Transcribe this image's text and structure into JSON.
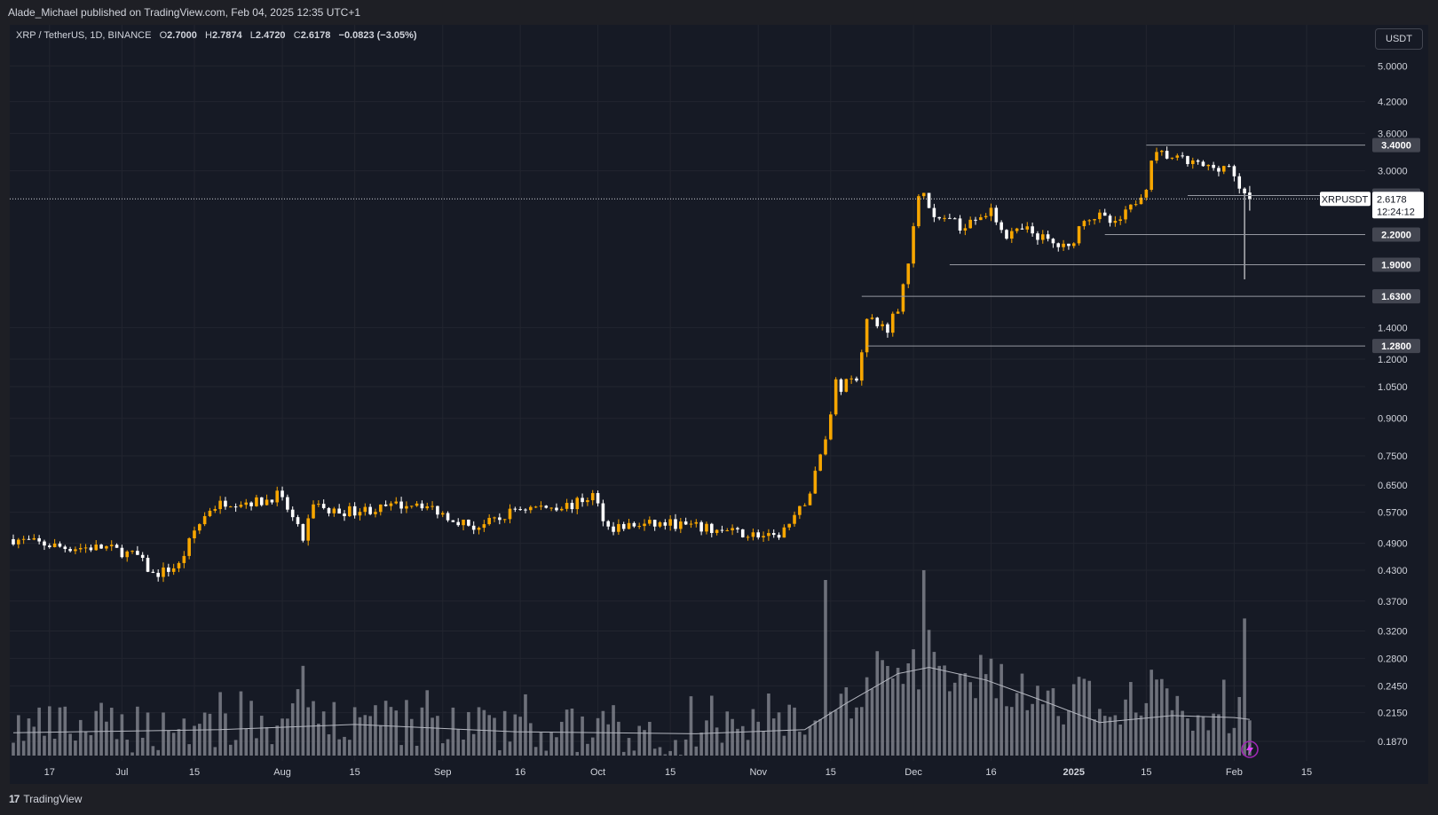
{
  "header": {
    "published_by": "Alade_Michael published on TradingView.com, Feb 04, 2025 12:35 UTC+1"
  },
  "legend": {
    "symbol": "XRP / TetherUS, 1D, BINANCE",
    "o_label": "O",
    "o": "2.7000",
    "h_label": "H",
    "h": "2.7874",
    "l_label": "L",
    "l": "2.4720",
    "c_label": "C",
    "c": "2.6178",
    "change": "−0.0823 (−3.05%)"
  },
  "toolbar": {
    "currency_button": "USDT"
  },
  "footer": {
    "brand": "TradingView",
    "brand_icon": "tradingview-logo-icon"
  },
  "colors": {
    "background": "#161a25",
    "up": "#f7a600",
    "down": "#ffffff",
    "volume": "#8c8f98",
    "grid": "#22252f"
  },
  "chart_data": {
    "type": "candlestick",
    "symbol": "XRPUSDT",
    "y_scale": "log",
    "ylim": [
      0.1745,
      6.0
    ],
    "y_ticks": [
      "5.0000",
      "4.2000",
      "3.6000",
      "3.0000",
      "1.4000",
      "1.2000",
      "1.0500",
      "0.9000",
      "0.7500",
      "0.6500",
      "0.5700",
      "0.4900",
      "0.4300",
      "0.3700",
      "0.3200",
      "0.2800",
      "0.2450",
      "0.2150",
      "0.1870"
    ],
    "level_lines": [
      "3.4000",
      "2.6600",
      "2.2000",
      "1.9000",
      "1.6300",
      "1.2800"
    ],
    "current_price": {
      "symbol": "XRPUSDT",
      "value": "2.6178",
      "countdown": "12:24:12"
    },
    "x_ticks": [
      {
        "date": "2024-06-17",
        "label": "17"
      },
      {
        "date": "2024-07-01",
        "label": "Jul"
      },
      {
        "date": "2024-07-15",
        "label": "15"
      },
      {
        "date": "2024-08-01",
        "label": "Aug"
      },
      {
        "date": "2024-08-15",
        "label": "15"
      },
      {
        "date": "2024-09-01",
        "label": "Sep"
      },
      {
        "date": "2024-09-16",
        "label": "16"
      },
      {
        "date": "2024-10-01",
        "label": "Oct"
      },
      {
        "date": "2024-10-15",
        "label": "15"
      },
      {
        "date": "2024-11-01",
        "label": "Nov"
      },
      {
        "date": "2024-11-15",
        "label": "15"
      },
      {
        "date": "2024-12-01",
        "label": "Dec"
      },
      {
        "date": "2024-12-16",
        "label": "16"
      },
      {
        "date": "2025-01-01",
        "label": "2025"
      },
      {
        "date": "2025-01-15",
        "label": "15"
      },
      {
        "date": "2025-02-01",
        "label": "Feb"
      },
      {
        "date": "2025-02-15",
        "label": "15"
      }
    ],
    "price_path": [
      [
        "2024-06-10",
        0.5
      ],
      [
        "2024-06-20",
        0.48
      ],
      [
        "2024-06-28",
        0.48
      ],
      [
        "2024-07-04",
        0.46
      ],
      [
        "2024-07-07",
        0.42
      ],
      [
        "2024-07-12",
        0.44
      ],
      [
        "2024-07-15",
        0.52
      ],
      [
        "2024-07-18",
        0.58
      ],
      [
        "2024-07-21",
        0.6
      ],
      [
        "2024-07-28",
        0.6
      ],
      [
        "2024-07-31",
        0.62
      ],
      [
        "2024-08-02",
        0.58
      ],
      [
        "2024-08-05",
        0.5
      ],
      [
        "2024-08-07",
        0.6
      ],
      [
        "2024-08-10",
        0.57
      ],
      [
        "2024-08-20",
        0.58
      ],
      [
        "2024-08-27",
        0.6
      ],
      [
        "2024-09-02",
        0.56
      ],
      [
        "2024-09-07",
        0.53
      ],
      [
        "2024-09-12",
        0.55
      ],
      [
        "2024-09-15",
        0.58
      ],
      [
        "2024-09-26",
        0.59
      ],
      [
        "2024-09-30",
        0.62
      ],
      [
        "2024-10-03",
        0.53
      ],
      [
        "2024-10-15",
        0.54
      ],
      [
        "2024-10-25",
        0.52
      ],
      [
        "2024-11-01",
        0.51
      ],
      [
        "2024-11-04",
        0.5
      ],
      [
        "2024-11-08",
        0.55
      ],
      [
        "2024-11-11",
        0.63
      ],
      [
        "2024-11-13",
        0.75
      ],
      [
        "2024-11-15",
        0.9
      ],
      [
        "2024-11-16",
        1.1
      ],
      [
        "2024-11-17",
        1.05
      ],
      [
        "2024-11-20",
        1.1
      ],
      [
        "2024-11-22",
        1.45
      ],
      [
        "2024-11-26",
        1.4
      ],
      [
        "2024-11-28",
        1.55
      ],
      [
        "2024-11-30",
        1.95
      ],
      [
        "2024-12-02",
        2.6
      ],
      [
        "2024-12-03",
        2.75
      ],
      [
        "2024-12-05",
        2.35
      ],
      [
        "2024-12-08",
        2.4
      ],
      [
        "2024-12-10",
        2.25
      ],
      [
        "2024-12-12",
        2.4
      ],
      [
        "2024-12-16",
        2.45
      ],
      [
        "2024-12-19",
        2.2
      ],
      [
        "2024-12-23",
        2.25
      ],
      [
        "2024-12-28",
        2.1
      ],
      [
        "2024-12-31",
        2.05
      ],
      [
        "2025-01-03",
        2.4
      ],
      [
        "2025-01-06",
        2.4
      ],
      [
        "2025-01-09",
        2.3
      ],
      [
        "2025-01-12",
        2.5
      ],
      [
        "2025-01-15",
        2.8
      ],
      [
        "2025-01-16",
        3.2
      ],
      [
        "2025-01-18",
        3.25
      ],
      [
        "2025-01-22",
        3.15
      ],
      [
        "2025-01-27",
        3.05
      ],
      [
        "2025-01-31",
        3.08
      ],
      [
        "2025-02-02",
        2.7
      ],
      [
        "2025-02-03",
        2.7
      ],
      [
        "2025-02-04",
        2.6178
      ]
    ],
    "volume_ma_path": [
      [
        "2024-06-10",
        0.195
      ],
      [
        "2024-07-20",
        0.198
      ],
      [
        "2024-08-15",
        0.203
      ],
      [
        "2024-09-15",
        0.196
      ],
      [
        "2024-10-20",
        0.194
      ],
      [
        "2024-11-10",
        0.198
      ],
      [
        "2024-11-18",
        0.225
      ],
      [
        "2024-11-28",
        0.26
      ],
      [
        "2024-12-04",
        0.268
      ],
      [
        "2024-12-15",
        0.252
      ],
      [
        "2024-12-25",
        0.23
      ],
      [
        "2025-01-06",
        0.205
      ],
      [
        "2025-01-20",
        0.212
      ],
      [
        "2025-02-01",
        0.21
      ],
      [
        "2025-02-04",
        0.208
      ]
    ],
    "volume_spikes": [
      [
        "2024-11-14",
        0.41
      ],
      [
        "2024-12-03",
        0.43
      ],
      [
        "2024-11-24",
        0.29
      ],
      [
        "2025-01-16",
        0.265
      ],
      [
        "2025-02-03",
        0.34
      ],
      [
        "2024-08-05",
        0.27
      ],
      [
        "2024-12-22",
        0.26
      ]
    ]
  }
}
